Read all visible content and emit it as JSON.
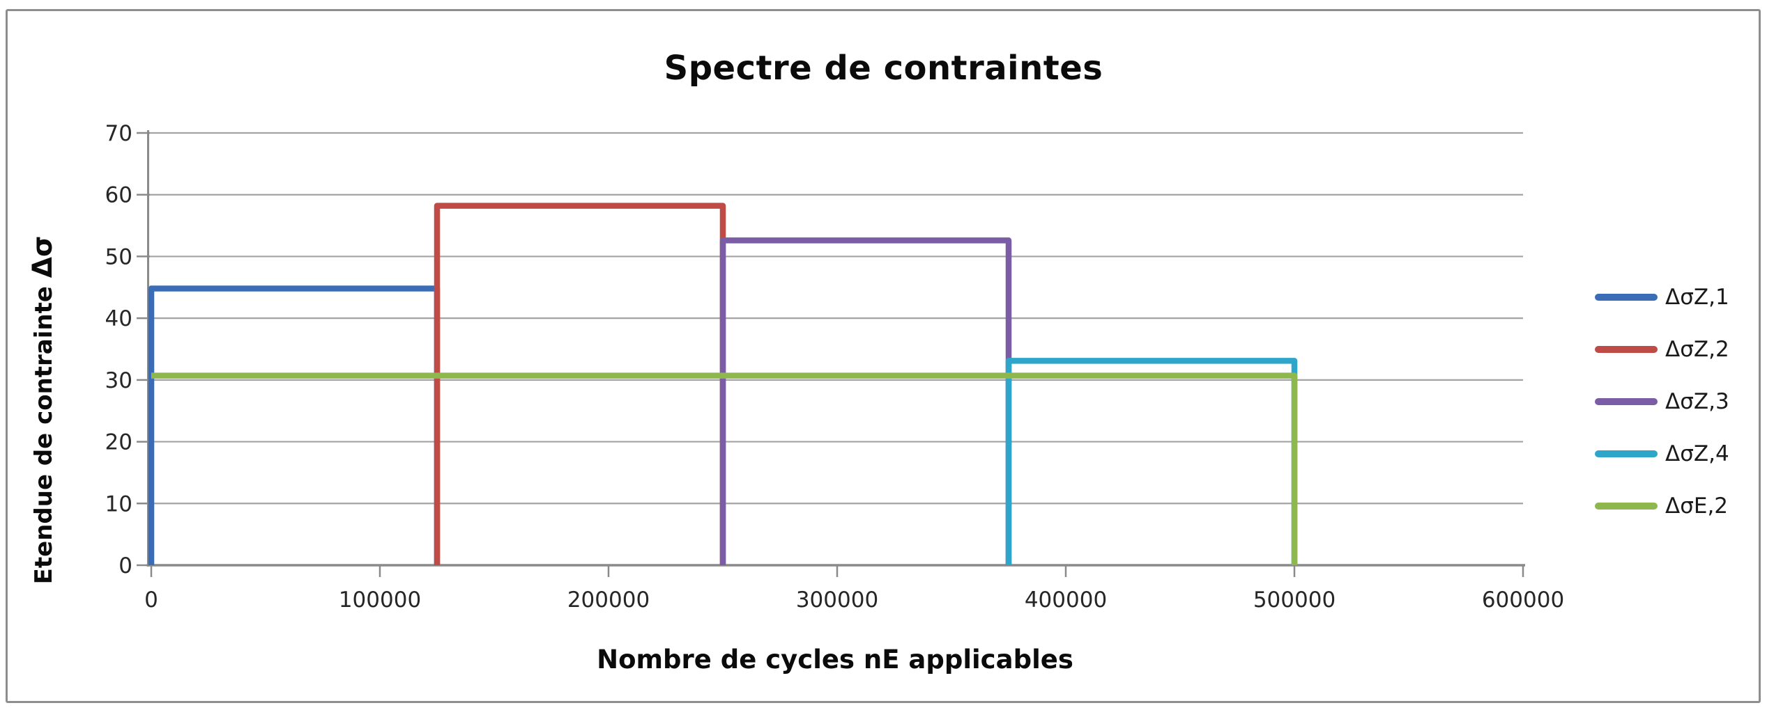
{
  "figure": {
    "background": "#ffffff",
    "border_color": "#8e8e8e"
  },
  "chart_data": {
    "type": "line",
    "subtype": "stepped-stress-spectrum",
    "title": "Spectre de contraintes",
    "xlabel": "Nombre de cycles nE applicables",
    "ylabel": "Etendue de contrainte Δσ",
    "ylabel_text": "Etendue de contrainte",
    "ylabel_symbol": "Δσ",
    "xlim": [
      0,
      600000
    ],
    "ylim": [
      0,
      70
    ],
    "x_ticks": [
      0,
      100000,
      200000,
      300000,
      400000,
      500000,
      600000
    ],
    "y_ticks": [
      0,
      10,
      20,
      30,
      40,
      50,
      60,
      70
    ],
    "grid": "horizontal",
    "legend_position": "right",
    "colors": {
      "gridline": "#a3a3a3",
      "axis": "#8a8a8a",
      "tick_label": "#262626",
      "title_text": "#0b0b0b"
    },
    "series": [
      {
        "name": "ΔσZ,1",
        "color": "#3a6db5",
        "stress_range": 44.8,
        "cycles_from": 0,
        "cycles_to": 125000,
        "points": [
          [
            0,
            0
          ],
          [
            0,
            44.8
          ],
          [
            125000,
            44.8
          ],
          [
            125000,
            0
          ]
        ]
      },
      {
        "name": "ΔσZ,2",
        "color": "#bf4b47",
        "stress_range": 58.2,
        "cycles_from": 125000,
        "cycles_to": 250000,
        "points": [
          [
            125000,
            0
          ],
          [
            125000,
            58.2
          ],
          [
            250000,
            58.2
          ],
          [
            250000,
            0
          ]
        ]
      },
      {
        "name": "ΔσZ,3",
        "color": "#7b5da6",
        "stress_range": 52.6,
        "cycles_from": 250000,
        "cycles_to": 375000,
        "points": [
          [
            250000,
            0
          ],
          [
            250000,
            52.6
          ],
          [
            375000,
            52.6
          ],
          [
            375000,
            0
          ]
        ]
      },
      {
        "name": "ΔσZ,4",
        "color": "#2ea6c9",
        "stress_range": 33.1,
        "cycles_from": 375000,
        "cycles_to": 500000,
        "points": [
          [
            375000,
            0
          ],
          [
            375000,
            33.1
          ],
          [
            500000,
            33.1
          ],
          [
            500000,
            0
          ]
        ]
      },
      {
        "name": "ΔσE,2",
        "color": "#8eb84d",
        "stress_range": 30.7,
        "cycles_from": 0,
        "cycles_to": 500000,
        "points": [
          [
            0,
            30.7
          ],
          [
            500000,
            30.7
          ],
          [
            500000,
            0
          ]
        ]
      }
    ]
  }
}
